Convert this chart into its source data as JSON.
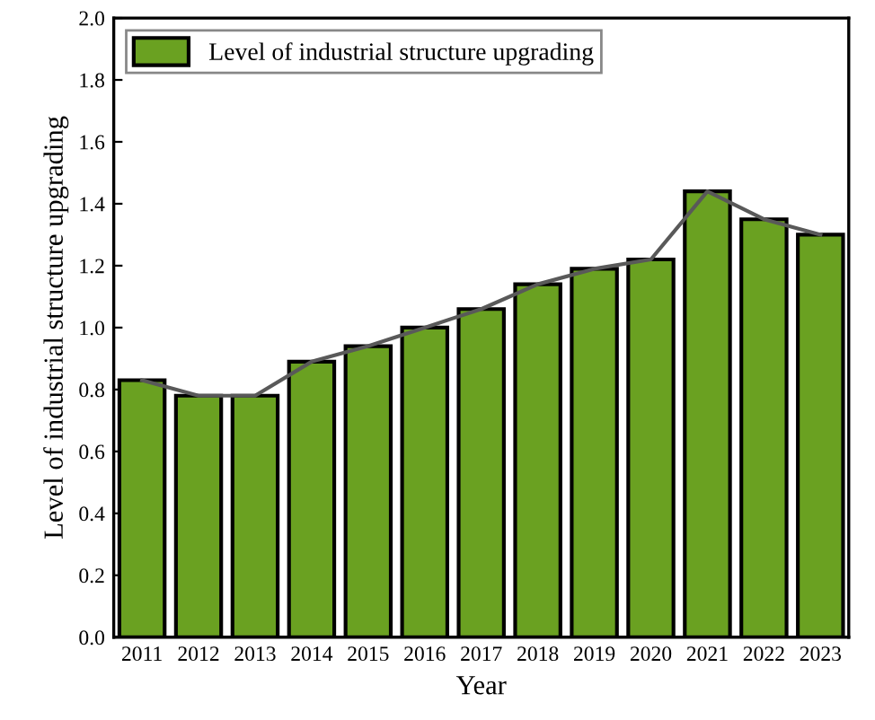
{
  "chart_data": {
    "type": "bar",
    "xlabel": "Year",
    "ylabel": "Level of industrial structure upgrading",
    "categories": [
      "2011",
      "2012",
      "2013",
      "2014",
      "2015",
      "2016",
      "2017",
      "2018",
      "2019",
      "2020",
      "2021",
      "2022",
      "2023"
    ],
    "series": [
      {
        "name": "Level of industrial structure upgrading",
        "color": "#6aa121",
        "values": [
          0.83,
          0.78,
          0.78,
          0.89,
          0.94,
          1.0,
          1.06,
          1.14,
          1.19,
          1.22,
          1.44,
          1.35,
          1.3
        ]
      },
      {
        "type": "line",
        "color": "#595959",
        "values": [
          0.83,
          0.78,
          0.78,
          0.89,
          0.94,
          1.0,
          1.06,
          1.14,
          1.19,
          1.22,
          1.44,
          1.35,
          1.3
        ]
      }
    ],
    "ylim": [
      0,
      2.0
    ],
    "yticks": [
      {
        "value": 0,
        "label": "0.0"
      },
      0.2,
      0.4,
      0.6,
      0.8,
      {
        "value": 1,
        "label": "1.0"
      },
      1.2,
      1.4,
      1.6,
      1.8,
      {
        "value": 2,
        "label": "2.0"
      }
    ],
    "grid": false,
    "legend": "top left",
    "marker": "none",
    "line_style": "solid"
  }
}
